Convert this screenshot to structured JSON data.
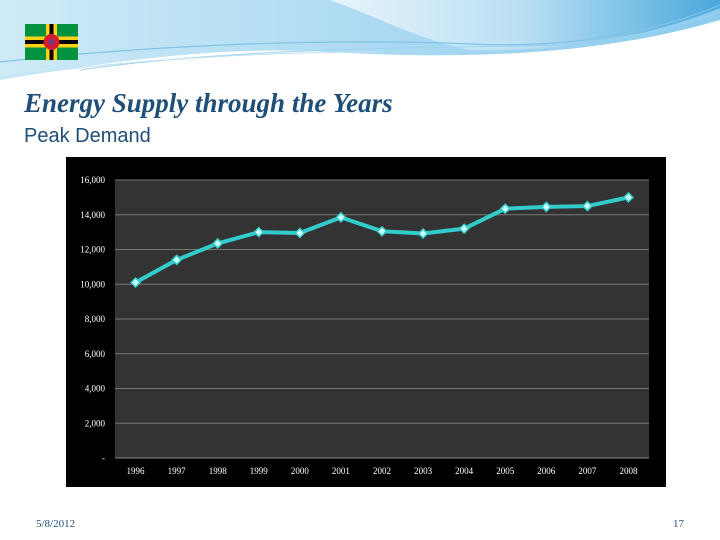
{
  "slide": {
    "title": "Energy Supply through the Years",
    "subtitle": "Peak Demand",
    "date": "5/8/2012",
    "page_number": "17"
  },
  "colors": {
    "title": "#1f4e79",
    "plot_background": "#333333",
    "frame_background": "#000000",
    "series_line": "#33cccc",
    "marker_fill": "#ccffff",
    "gridline": "#777777"
  },
  "icons": {
    "flag": "dominica-flag-icon"
  },
  "chart_data": {
    "type": "line",
    "title": "",
    "xlabel": "",
    "ylabel": "",
    "categories": [
      "1996",
      "1997",
      "1998",
      "1999",
      "2000",
      "2001",
      "2002",
      "2003",
      "2004",
      "2005",
      "2006",
      "2007",
      "2008"
    ],
    "series": [
      {
        "values": [
          10100,
          11400,
          12350,
          13000,
          12950,
          13850,
          13050,
          12920,
          13200,
          14350,
          14450,
          14500,
          15000
        ]
      }
    ],
    "ylim": [
      0,
      16000
    ],
    "yticks": [
      0,
      2000,
      4000,
      6000,
      8000,
      10000,
      12000,
      14000,
      16000
    ],
    "ytick_labels": [
      "-",
      "2,000",
      "4,000",
      "6,000",
      "8,000",
      "10,000",
      "12,000",
      "14,000",
      "16,000"
    ],
    "grid": true,
    "legend": "none"
  }
}
